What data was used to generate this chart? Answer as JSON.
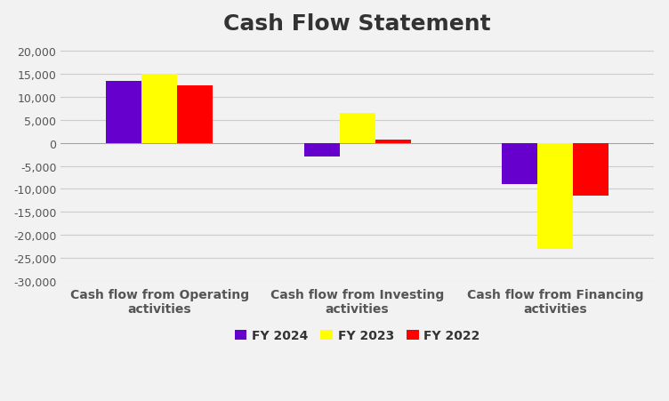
{
  "title": "Cash Flow Statement",
  "categories": [
    "Cash flow from Operating\nactivities",
    "Cash flow from Investing\nactivities",
    "Cash flow from Financing\nactivities"
  ],
  "series": [
    {
      "label": "FY 2024",
      "color": "#6600CC",
      "values": [
        13500,
        -3000,
        -9000
      ]
    },
    {
      "label": "FY 2023",
      "color": "#FFFF00",
      "values": [
        15000,
        6500,
        -23000
      ]
    },
    {
      "label": "FY 2022",
      "color": "#FF0000",
      "values": [
        12500,
        800,
        -11500
      ]
    }
  ],
  "ylim": [
    -30000,
    22000
  ],
  "yticks": [
    -30000,
    -25000,
    -20000,
    -15000,
    -10000,
    -5000,
    0,
    5000,
    10000,
    15000,
    20000
  ],
  "background_color": "#f2f2f2",
  "plot_bg_color": "#f2f2f2",
  "grid_color": "#cccccc",
  "bar_width": 0.18,
  "group_positions": [
    0.25,
    0.5,
    0.75
  ],
  "title_fontsize": 18,
  "tick_fontsize": 9,
  "legend_fontsize": 10,
  "xlabel_fontsize": 10
}
